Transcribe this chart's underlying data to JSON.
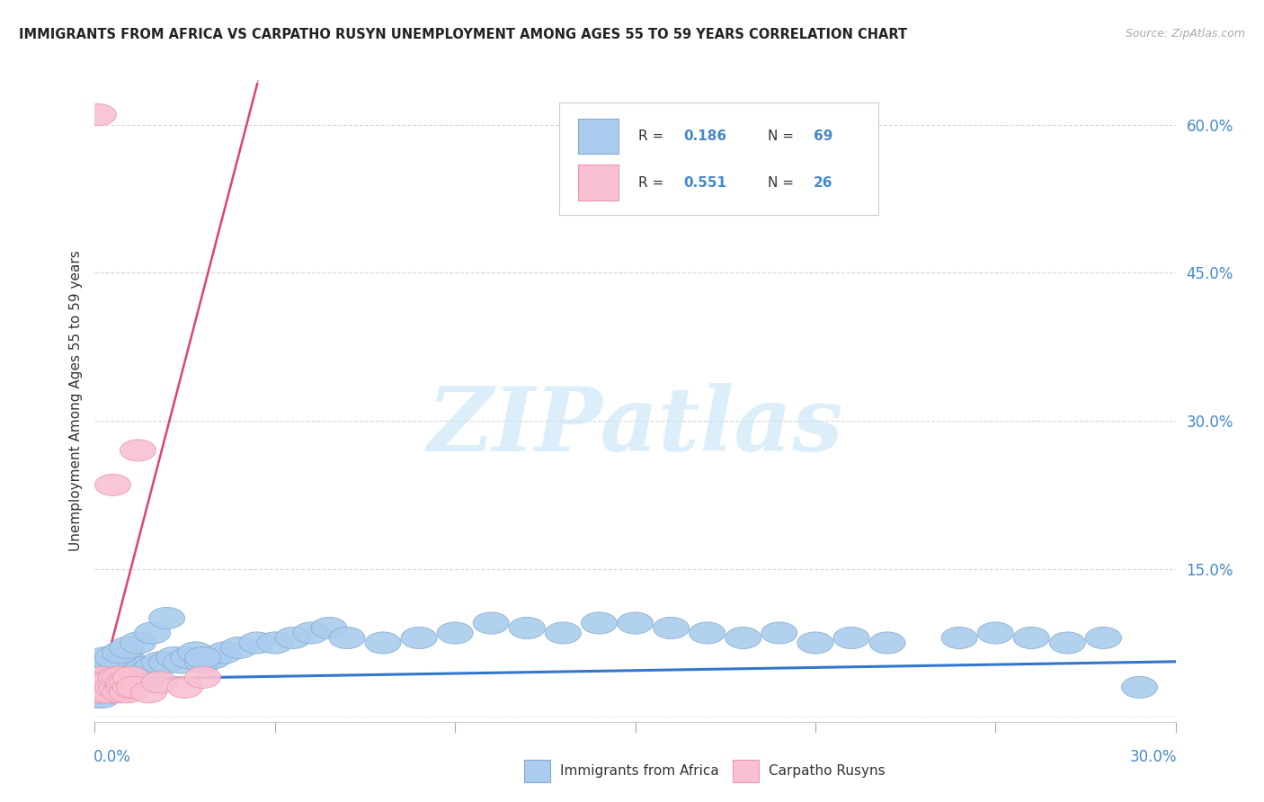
{
  "title": "IMMIGRANTS FROM AFRICA VS CARPATHO RUSYN UNEMPLOYMENT AMONG AGES 55 TO 59 YEARS CORRELATION CHART",
  "source": "Source: ZipAtlas.com",
  "ylabel": "Unemployment Among Ages 55 to 59 years",
  "y_ticks": [
    0.0,
    0.15,
    0.3,
    0.45,
    0.6
  ],
  "y_tick_labels": [
    "",
    "15.0%",
    "30.0%",
    "45.0%",
    "60.0%"
  ],
  "x_lim": [
    0.0,
    0.3
  ],
  "y_lim": [
    -0.005,
    0.645
  ],
  "blue_fill": "#aaccee",
  "blue_edge": "#88aacc",
  "pink_fill": "#f8c0d0",
  "pink_edge": "#e898b0",
  "blue_line": "#3377cc",
  "pink_line": "#dd4477",
  "text_dark": "#333333",
  "text_blue": "#4488cc",
  "text_gray": "#aaaaaa",
  "grid_color": "#cccccc",
  "watermark_color": "#cce8f8",
  "legend_R1": "0.186",
  "legend_N1": "69",
  "legend_R2": "0.551",
  "legend_N2": "26",
  "bottom_label1": "Immigrants from Africa",
  "bottom_label2": "Carpatho Rusyns",
  "blue_x": [
    0.001,
    0.002,
    0.002,
    0.003,
    0.003,
    0.004,
    0.004,
    0.005,
    0.005,
    0.006,
    0.006,
    0.007,
    0.007,
    0.008,
    0.008,
    0.009,
    0.01,
    0.01,
    0.011,
    0.012,
    0.013,
    0.014,
    0.015,
    0.016,
    0.018,
    0.02,
    0.022,
    0.024,
    0.026,
    0.028,
    0.03,
    0.033,
    0.036,
    0.04,
    0.045,
    0.05,
    0.055,
    0.06,
    0.065,
    0.07,
    0.08,
    0.09,
    0.1,
    0.11,
    0.12,
    0.13,
    0.14,
    0.15,
    0.16,
    0.17,
    0.18,
    0.19,
    0.2,
    0.21,
    0.22,
    0.24,
    0.25,
    0.26,
    0.27,
    0.28,
    0.003,
    0.005,
    0.007,
    0.009,
    0.012,
    0.016,
    0.02,
    0.03,
    0.29
  ],
  "blue_y": [
    0.02,
    0.02,
    0.04,
    0.035,
    0.05,
    0.03,
    0.045,
    0.025,
    0.04,
    0.03,
    0.045,
    0.035,
    0.055,
    0.03,
    0.05,
    0.04,
    0.035,
    0.055,
    0.045,
    0.04,
    0.05,
    0.045,
    0.04,
    0.05,
    0.055,
    0.055,
    0.06,
    0.055,
    0.06,
    0.065,
    0.055,
    0.06,
    0.065,
    0.07,
    0.075,
    0.075,
    0.08,
    0.085,
    0.09,
    0.08,
    0.075,
    0.08,
    0.085,
    0.095,
    0.09,
    0.085,
    0.095,
    0.095,
    0.09,
    0.085,
    0.08,
    0.085,
    0.075,
    0.08,
    0.075,
    0.08,
    0.085,
    0.08,
    0.075,
    0.08,
    0.06,
    0.06,
    0.065,
    0.07,
    0.075,
    0.085,
    0.1,
    0.06,
    0.03
  ],
  "pink_x": [
    0.001,
    0.001,
    0.002,
    0.002,
    0.003,
    0.003,
    0.004,
    0.004,
    0.005,
    0.005,
    0.006,
    0.006,
    0.007,
    0.007,
    0.008,
    0.008,
    0.009,
    0.009,
    0.01,
    0.01,
    0.011,
    0.012,
    0.015,
    0.018,
    0.025,
    0.03
  ],
  "pink_y": [
    0.61,
    0.025,
    0.025,
    0.04,
    0.03,
    0.035,
    0.025,
    0.035,
    0.235,
    0.03,
    0.03,
    0.04,
    0.025,
    0.04,
    0.03,
    0.035,
    0.025,
    0.035,
    0.03,
    0.04,
    0.03,
    0.27,
    0.025,
    0.035,
    0.03,
    0.04
  ],
  "blue_trend_slope": 0.06,
  "blue_trend_intercept": 0.038,
  "pink_trend_slope": 14.0,
  "pink_trend_intercept": 0.01
}
